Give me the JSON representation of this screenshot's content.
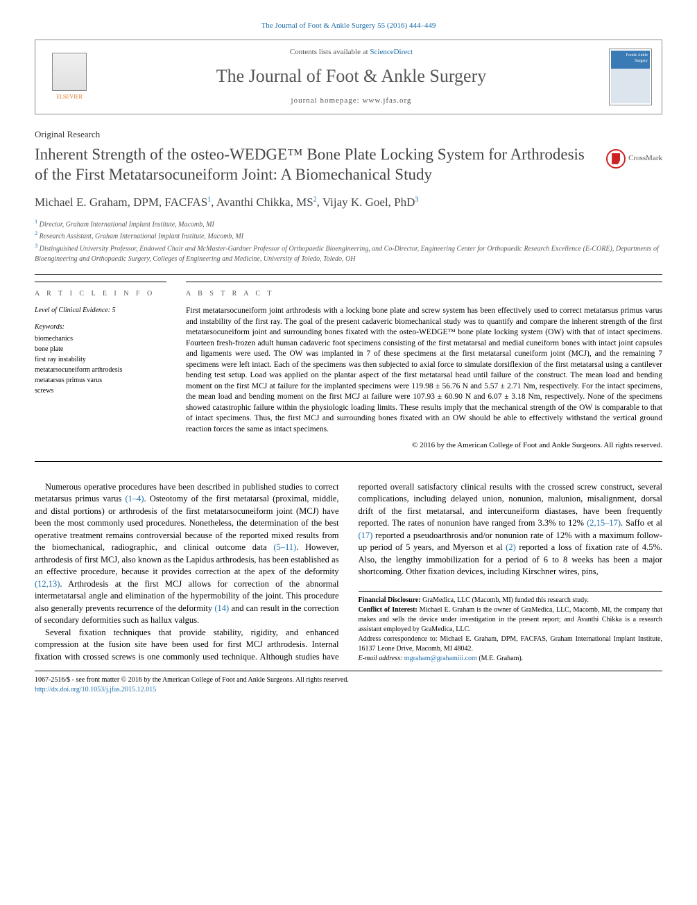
{
  "journal": {
    "headerLine": "The Journal of Foot & Ankle Surgery 55 (2016) 444–449",
    "contentsPrefix": "Contents lists available at ",
    "contentsLink": "ScienceDirect",
    "title": "The Journal of Foot & Ankle Surgery",
    "homepagePrefix": "journal homepage: ",
    "homepage": "www.jfas.org",
    "elsevierLabel": "ELSEVIER",
    "coverTitle": "Foot& Ankle Surgery"
  },
  "article": {
    "type": "Original Research",
    "title": "Inherent Strength of the osteo-WEDGE™ Bone Plate Locking System for Arthrodesis of the First Metatarsocuneiform Joint: A Biomechanical Study",
    "crossmark": "CrossMark"
  },
  "authors": {
    "line": "Michael E. Graham, DPM, FACFAS",
    "a1sup": "1",
    "a2": ", Avanthi Chikka, MS",
    "a2sup": "2",
    "a3": ", Vijay K. Goel, PhD",
    "a3sup": "3"
  },
  "affiliations": {
    "a1": "Director, Graham International Implant Institute, Macomb, MI",
    "a2": "Research Assistant, Graham International Implant Institute, Macomb, MI",
    "a3": "Distinguished University Professor, Endowed Chair and McMaster-Gardner Professor of Orthopaedic Bioengineering, and Co-Director, Engineering Center for Orthopaedic Research Excellence (E-CORE), Departments of Bioengineering and Orthopaedic Surgery, Colleges of Engineering and Medicine, University of Toledo, Toledo, OH"
  },
  "info": {
    "heading": "A R T I C L E  I N F O",
    "loeLabel": "Level of Clinical Evidence: ",
    "loeValue": "5",
    "kwLabel": "Keywords:",
    "keywords": [
      "biomechanics",
      "bone plate",
      "first ray instability",
      "metatarsocuneiform arthrodesis",
      "metatarsus primus varus",
      "screws"
    ]
  },
  "abstract": {
    "heading": "A B S T R A C T",
    "text": "First metatarsocuneiform joint arthrodesis with a locking bone plate and screw system has been effectively used to correct metatarsus primus varus and instability of the first ray. The goal of the present cadaveric biomechanical study was to quantify and compare the inherent strength of the first metatarsocuneiform joint and surrounding bones fixated with the osteo-WEDGE™ bone plate locking system (OW) with that of intact specimens. Fourteen fresh-frozen adult human cadaveric foot specimens consisting of the first metatarsal and medial cuneiform bones with intact joint capsules and ligaments were used. The OW was implanted in 7 of these specimens at the first metatarsal cuneiform joint (MCJ), and the remaining 7 specimens were left intact. Each of the specimens was then subjected to axial force to simulate dorsiflexion of the first metatarsal using a cantilever bending test setup. Load was applied on the plantar aspect of the first metatarsal head until failure of the construct. The mean load and bending moment on the first MCJ at failure for the implanted specimens were 119.98 ± 56.76 N and 5.57 ± 2.71 Nm, respectively. For the intact specimens, the mean load and bending moment on the first MCJ at failure were 107.93 ± 60.90 N and 6.07 ± 3.18 Nm, respectively. None of the specimens showed catastrophic failure within the physiologic loading limits. These results imply that the mechanical strength of the OW is comparable to that of intact specimens. Thus, the first MCJ and surrounding bones fixated with an OW should be able to effectively withstand the vertical ground reaction forces the same as intact specimens.",
    "copyright": "© 2016 by the American College of Foot and Ankle Surgeons. All rights reserved."
  },
  "body": {
    "p1a": "Numerous operative procedures have been described in published studies to correct metatarsus primus varus ",
    "p1ref1": "(1–4)",
    "p1b": ". Osteotomy of the first metatarsal (proximal, middle, and distal portions) or arthrodesis of the first metatarsocuneiform joint (MCJ) have been the most commonly used procedures. Nonetheless, the determination of the best operative treatment remains controversial because of the reported mixed results from the biomechanical, radiographic, and clinical outcome data ",
    "p1ref2": "(5–11)",
    "p1c": ". However, arthrodesis of first MCJ, also known as the Lapidus arthrodesis, has been established as an effective procedure, because it provides correction at the apex of the deformity ",
    "p2ref1": "(12,13)",
    "p2a": ". Arthrodesis at the first MCJ allows for correction of the abnormal intermetatarsal angle and elimination of the hypermobility of the joint. This procedure also generally prevents recurrence of the deformity ",
    "p2ref2": "(14)",
    "p2b": " and can result in the correction of secondary deformities such as hallux valgus.",
    "p3a": "Several fixation techniques that provide stability, rigidity, and enhanced compression at the fusion site have been used for first MCJ arthrodesis. Internal fixation with crossed screws is one commonly used technique. Although studies have reported overall satisfactory clinical results with the crossed screw construct, several complications, including delayed union, nonunion, malunion, misalignment, dorsal drift of the first metatarsal, and intercuneiform diastases, have been frequently reported. The rates of nonunion have ranged from 3.3% to 12% ",
    "p3ref1": "(2,15–17)",
    "p3b": ". Saffo et al ",
    "p3ref2": "(17)",
    "p3c": " reported a pseudoarthrosis and/or nonunion rate of 12% with a maximum follow-up period of 5 years, and Myerson et al ",
    "p3ref3": "(2)",
    "p3d": " reported a loss of fixation rate of 4.5%. Also, the lengthy immobilization for a period of 6 to 8 weeks has been a major shortcoming. Other fixation devices, including Kirschner wires, pins,"
  },
  "footnotes": {
    "fd_label": "Financial Disclosure:",
    "fd": " GraMedica, LLC (Macomb, MI) funded this research study.",
    "coi_label": "Conflict of Interest:",
    "coi": " Michael E. Graham is the owner of GraMedica, LLC, Macomb, MI, the company that makes and sells the device under investigation in the present report; and Avanthi Chikka is a research assistant employed by GraMedica, LLC.",
    "corr": "Address correspondence to: Michael E. Graham, DPM, FACFAS, Graham International Implant Institute, 16137 Leone Drive, Macomb, MI 48042.",
    "email_label": "E-mail address: ",
    "email": "mgraham@grahamiii.com",
    "email_suffix": " (M.E. Graham)."
  },
  "footer": {
    "line1": "1067-2516/$ - see front matter © 2016 by the American College of Foot and Ankle Surgeons. All rights reserved.",
    "doi": "http://dx.doi.org/10.1053/j.jfas.2015.12.015"
  },
  "colors": {
    "link": "#1a6ba8",
    "text": "#000000",
    "muted": "#555555",
    "elsevier": "#e37222"
  }
}
